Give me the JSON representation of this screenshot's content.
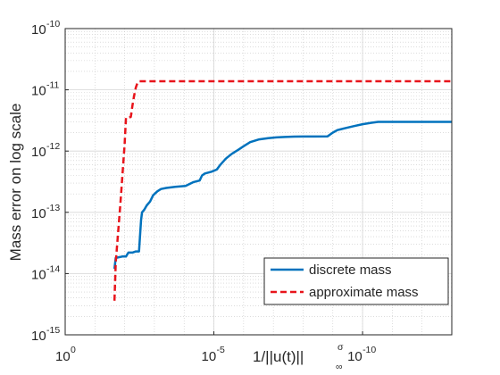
{
  "chart_data": {
    "type": "line",
    "title": "",
    "xlabel": "1/||u(t)||",
    "xlabel_sup": "σ",
    "xlabel_sub": "∞",
    "ylabel": "Mass error on log scale",
    "x_scale": "log",
    "x_direction": "reverse",
    "y_scale": "log",
    "xlim": [
      1,
      1e-13
    ],
    "ylim": [
      1e-15,
      1e-10
    ],
    "grid": true,
    "minor_grid": true,
    "legend_position": "lower-right",
    "x_ticks": [
      {
        "value": 1,
        "base": "10",
        "exp": "0"
      },
      {
        "value": 1e-05,
        "base": "10",
        "exp": "-5"
      },
      {
        "value": 1e-10,
        "base": "10",
        "exp": "-10"
      }
    ],
    "y_ticks": [
      {
        "value": 1e-15,
        "base": "10",
        "exp": "-15"
      },
      {
        "value": 1e-14,
        "base": "10",
        "exp": "-14"
      },
      {
        "value": 1e-13,
        "base": "10",
        "exp": "-13"
      },
      {
        "value": 1e-12,
        "base": "10",
        "exp": "-12"
      },
      {
        "value": 1e-11,
        "base": "10",
        "exp": "-11"
      },
      {
        "value": 1e-10,
        "base": "10",
        "exp": "-10"
      }
    ],
    "series": [
      {
        "name": "discrete mass",
        "color": "#0072bd",
        "style": "solid",
        "points": [
          [
            0.022,
            1.2e-14
          ],
          [
            0.02,
            1.8e-14
          ],
          [
            0.012,
            1.9e-14
          ],
          [
            0.009,
            1.9e-14
          ],
          [
            0.0075,
            2.2e-14
          ],
          [
            0.0055,
            2.2e-14
          ],
          [
            0.0042,
            2.3e-14
          ],
          [
            0.0033,
            2.3e-14
          ],
          [
            0.003,
            4.5e-14
          ],
          [
            0.0028,
            7.5e-14
          ],
          [
            0.0026,
            1e-13
          ],
          [
            0.0022,
            1.1e-13
          ],
          [
            0.0018,
            1.3e-13
          ],
          [
            0.0014,
            1.5e-13
          ],
          [
            0.0011,
            1.9e-13
          ],
          [
            0.0008,
            2.2e-13
          ],
          [
            0.0006,
            2.4e-13
          ],
          [
            0.0004,
            2.5e-13
          ],
          [
            0.0002,
            2.6e-13
          ],
          [
            9e-05,
            2.7e-13
          ],
          [
            5e-05,
            3.1e-13
          ],
          [
            3e-05,
            3.3e-13
          ],
          [
            2.5e-05,
            4e-13
          ],
          [
            2e-05,
            4.3e-13
          ],
          [
            1.2e-05,
            4.6e-13
          ],
          [
            8e-06,
            5e-13
          ],
          [
            6e-06,
            6e-13
          ],
          [
            4e-06,
            7.5e-13
          ],
          [
            2.5e-06,
            9e-13
          ],
          [
            1.5e-06,
            1.05e-12
          ],
          [
            1e-06,
            1.2e-12
          ],
          [
            6e-07,
            1.4e-12
          ],
          [
            3e-07,
            1.55e-12
          ],
          [
            1.5e-07,
            1.62e-12
          ],
          [
            8e-08,
            1.67e-12
          ],
          [
            4e-08,
            1.7e-12
          ],
          [
            2e-08,
            1.72e-12
          ],
          [
            1e-08,
            1.73e-12
          ],
          [
            4e-09,
            1.73e-12
          ],
          [
            1.5e-09,
            1.74e-12
          ],
          [
            1e-09,
            2e-12
          ],
          [
            7e-10,
            2.2e-12
          ],
          [
            4e-10,
            2.35e-12
          ],
          [
            2e-10,
            2.55e-12
          ],
          [
            1e-10,
            2.75e-12
          ],
          [
            5e-11,
            2.9e-12
          ],
          [
            3e-11,
            3e-12
          ],
          [
            1e-11,
            3e-12
          ],
          [
            1e-12,
            3e-12
          ],
          [
            1e-13,
            3e-12
          ]
        ]
      },
      {
        "name": "approximate mass",
        "color": "#e8141b",
        "style": "dashed",
        "points": [
          [
            0.022,
            3.6e-15
          ],
          [
            0.02,
            1.5e-14
          ],
          [
            0.014,
            1.3e-13
          ],
          [
            0.01,
            1.3e-12
          ],
          [
            0.009,
            3.5e-12
          ],
          [
            0.008,
            3.5e-12
          ],
          [
            0.0062,
            3.6e-12
          ],
          [
            0.0055,
            5.5e-12
          ],
          [
            0.0048,
            8e-12
          ],
          [
            0.0042,
            1.1e-11
          ],
          [
            0.0037,
            1.3e-11
          ],
          [
            0.0033,
            1.38e-11
          ],
          [
            0.003,
            1.38e-11
          ],
          [
            1e-06,
            1.38e-11
          ],
          [
            1e-13,
            1.38e-11
          ]
        ]
      }
    ]
  }
}
